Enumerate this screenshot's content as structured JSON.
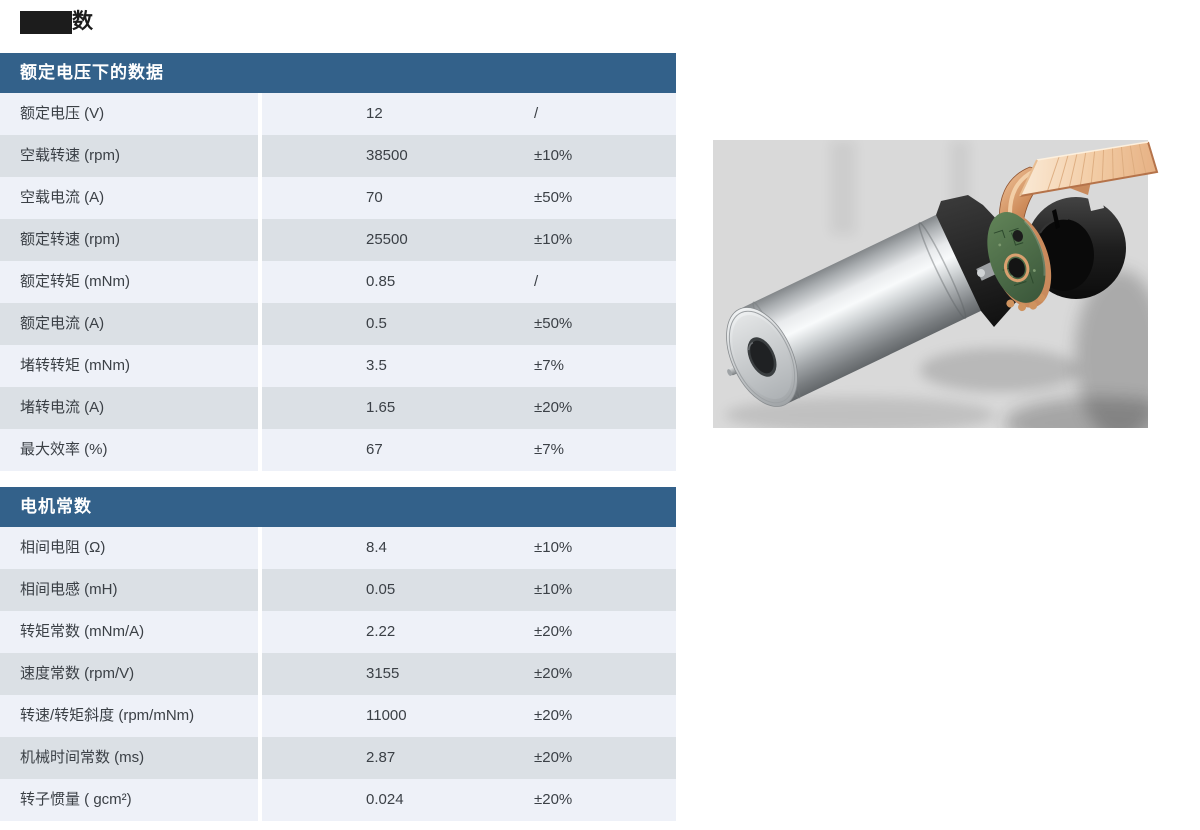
{
  "page": {
    "title_visible_text": "数"
  },
  "tables": [
    {
      "title": "额定电压下的数据",
      "rows": [
        {
          "label": "额定电压 (V)",
          "value": "12",
          "tolerance": "/"
        },
        {
          "label": "空载转速 (rpm)",
          "value": "38500",
          "tolerance": "±10%"
        },
        {
          "label": "空载电流 (A)",
          "value": "70",
          "tolerance": "±50%"
        },
        {
          "label": "额定转速 (rpm)",
          "value": "25500",
          "tolerance": "±10%"
        },
        {
          "label": "额定转矩 (mNm)",
          "value": "0.85",
          "tolerance": "/"
        },
        {
          "label": "额定电流 (A)",
          "value": "0.5",
          "tolerance": "±50%"
        },
        {
          "label": "堵转转矩 (mNm)",
          "value": "3.5",
          "tolerance": "±7%"
        },
        {
          "label": "堵转电流 (A)",
          "value": "1.65",
          "tolerance": "±20%"
        },
        {
          "label": "最大效率 (%)",
          "value": "67",
          "tolerance": "±7%"
        }
      ]
    },
    {
      "title": "电机常数",
      "rows": [
        {
          "label": "相间电阻 (Ω)",
          "value": "8.4",
          "tolerance": "±10%"
        },
        {
          "label": "相间电感 (mH)",
          "value": "0.05",
          "tolerance": "±10%"
        },
        {
          "label": "转矩常数 (mNm/A)",
          "value": "2.22",
          "tolerance": "±20%"
        },
        {
          "label": "速度常数 (rpm/V)",
          "value": "3155",
          "tolerance": "±20%"
        },
        {
          "label": "转速/转矩斜度 (rpm/mNm)",
          "value": "11000",
          "tolerance": "±20%"
        },
        {
          "label": "机械时间常数 (ms)",
          "value": "2.87",
          "tolerance": "±20%"
        },
        {
          "label": "转子惯量 ( gcm²)",
          "value": "0.024",
          "tolerance": "±20%"
        }
      ]
    }
  ],
  "image": {
    "name": "micro-coreless-dc-motor-exploded-view"
  },
  "colors": {
    "header_bg": "#33618a",
    "row_light": "#eef1f8",
    "row_alt": "#dbe0e5",
    "backdrop": "#d9d9d9",
    "text": "#3b4046"
  }
}
